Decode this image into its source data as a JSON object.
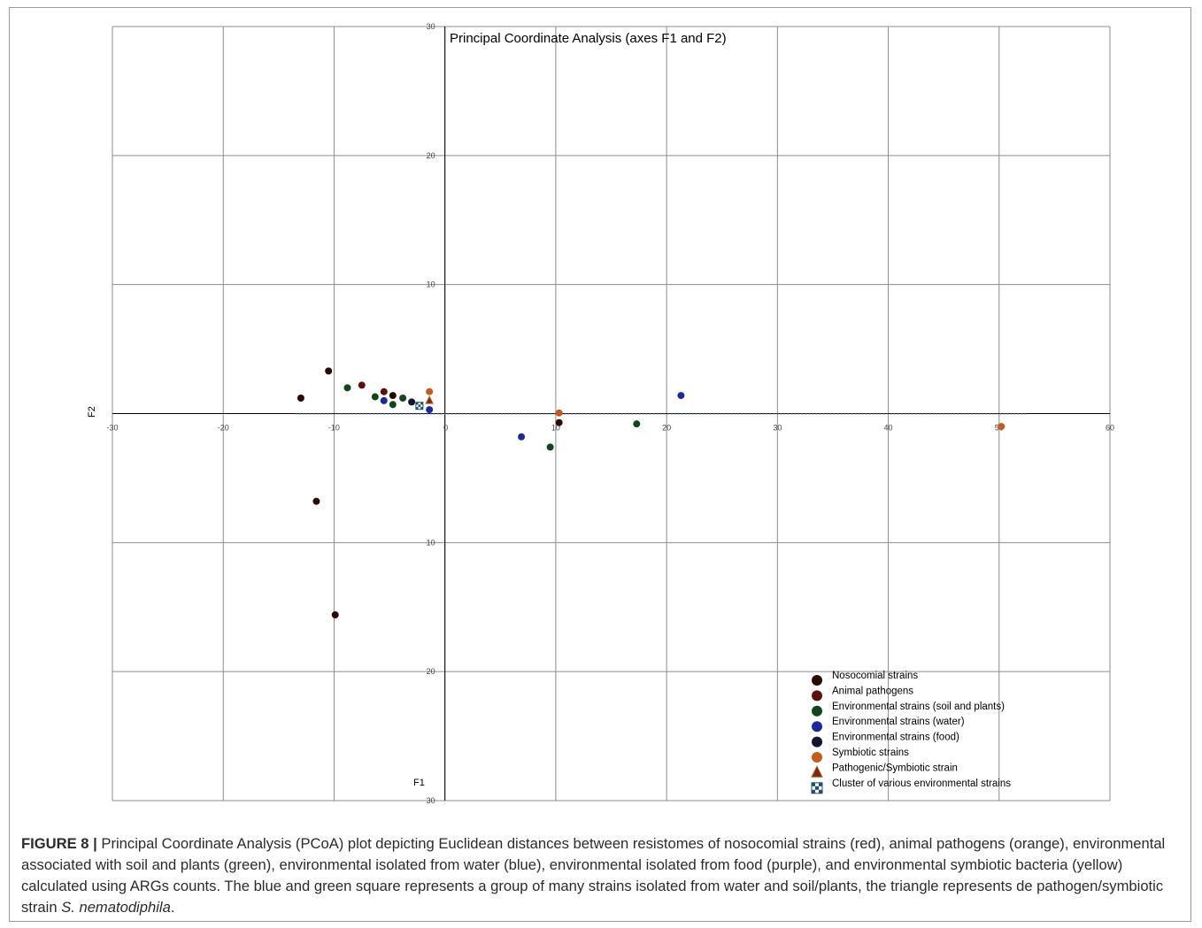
{
  "chart_data": {
    "type": "scatter",
    "title": "Principal Coordinate Analysis (axes F1 and F2)",
    "xlabel": "F1",
    "ylabel": "F2",
    "xlim": [
      -30,
      60
    ],
    "ylim": [
      -30,
      30
    ],
    "x_ticks": [
      -30,
      -20,
      -10,
      0,
      10,
      20,
      30,
      40,
      50,
      60
    ],
    "y_ticks": [
      -30,
      -20,
      -10,
      10,
      20,
      30
    ],
    "grid": true,
    "legend_position": "bottom-right",
    "series": [
      {
        "name": "Nosocomial strains",
        "color": "#2a0a05",
        "marker": "circle",
        "points": [
          [
            -13,
            1.2
          ],
          [
            -10.5,
            3.3
          ],
          [
            -11.6,
            -6.8
          ],
          [
            -9.9,
            -15.6
          ],
          [
            -4.7,
            1.4
          ],
          [
            10.3,
            -0.7
          ]
        ]
      },
      {
        "name": "Animal pathogens",
        "color": "#5c1208",
        "marker": "circle",
        "points": [
          [
            -7.5,
            2.2
          ],
          [
            -5.5,
            1.7
          ]
        ]
      },
      {
        "name": "Environmental strains (soil and plants)",
        "color": "#13451a",
        "marker": "circle",
        "points": [
          [
            -8.8,
            2.0
          ],
          [
            -6.3,
            1.3
          ],
          [
            -4.7,
            0.7
          ],
          [
            -3.8,
            1.2
          ],
          [
            9.5,
            -2.6
          ],
          [
            17.3,
            -0.8
          ]
        ]
      },
      {
        "name": "Environmental strains (water)",
        "color": "#1a2a9c",
        "marker": "circle",
        "points": [
          [
            -5.5,
            1.0
          ],
          [
            6.9,
            -1.8
          ],
          [
            21.3,
            1.4
          ],
          [
            -1.4,
            0.3
          ]
        ]
      },
      {
        "name": "Environmental strains (food)",
        "color": "#141433",
        "marker": "circle",
        "points": [
          [
            -3.0,
            0.9
          ]
        ]
      },
      {
        "name": "Symbiotic strains",
        "color": "#c55b1c",
        "marker": "circle",
        "points": [
          [
            -1.4,
            1.7
          ],
          [
            10.3,
            0.05
          ],
          [
            50.2,
            -1.0
          ]
        ]
      },
      {
        "name": "Pathogenic/Symbiotic strain",
        "color": "#7a2a10",
        "marker": "triangle",
        "points": [
          [
            -1.4,
            1.0
          ]
        ]
      },
      {
        "name": "Cluster of various environmental strains",
        "color": "#1f4c8a",
        "marker": "checkered-square",
        "points": [
          [
            -2.3,
            0.6
          ]
        ]
      }
    ]
  },
  "caption": {
    "label": "FIGURE 8 |",
    "lines": [
      "Principal Coordinate Analysis (PCoA) plot depicting Euclidean distances between resistomes of nosocomial strains (red), animal pathogens (orange),",
      "environmental associated with soil and plants (green), environmental isolated from water (blue), environmental isolated from food (purple), and environmental",
      "symbiotic bacteria (yellow) calculated using ARGs counts. The blue and green square represents a group of many strains isolated from water and soil/plants, the",
      "triangle represents de pathogen/symbiotic strain "
    ],
    "species": "S. nematodiphila",
    "end": "."
  }
}
